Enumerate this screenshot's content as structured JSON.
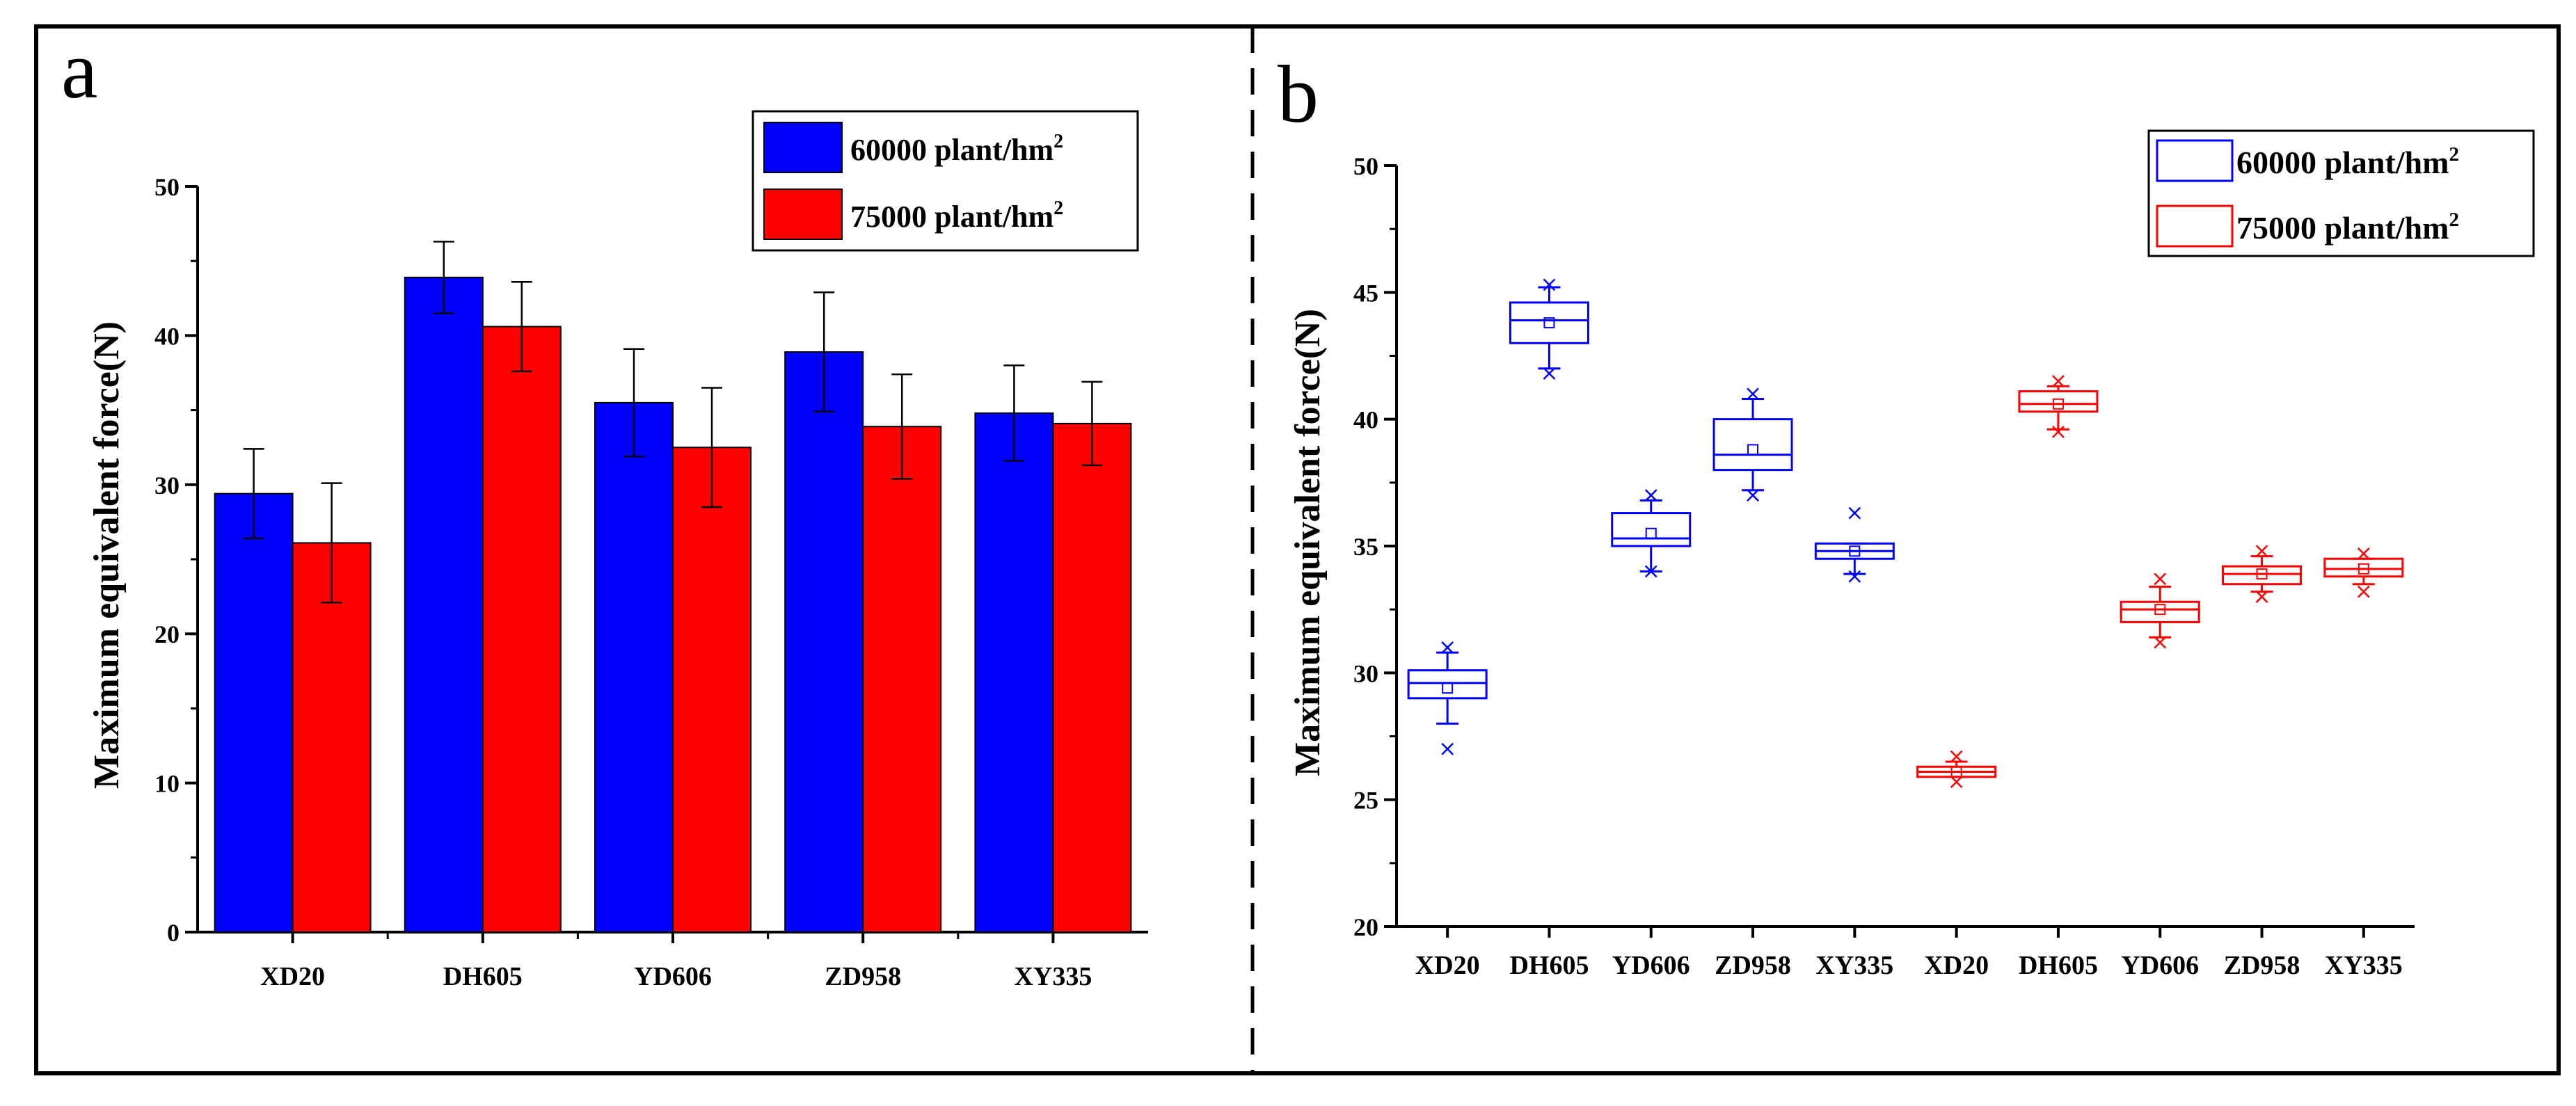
{
  "figure": {
    "border_color": "#000000",
    "divider_style": "dashed"
  },
  "chart_data": [
    {
      "panel_label": "a",
      "type": "bar",
      "title": "",
      "xlabel": "",
      "ylabel": "Maximum equivalent force(N)",
      "ylim": [
        0,
        50
      ],
      "yticks": [
        "0",
        "10",
        "20",
        "30",
        "40",
        "50"
      ],
      "grid": false,
      "categories": [
        "XD20",
        "DH605",
        "YD606",
        "ZD958",
        "XY335"
      ],
      "series": [
        {
          "name": "60000 plant/hm",
          "superscript": "2",
          "color": "#0000ff",
          "values": [
            29.4,
            43.9,
            35.5,
            38.9,
            34.8
          ],
          "errors": [
            3.0,
            2.4,
            3.6,
            4.0,
            3.2
          ]
        },
        {
          "name": "75000 plant/hm",
          "superscript": "2",
          "color": "#ff0000",
          "values": [
            26.1,
            40.6,
            32.5,
            33.9,
            34.1
          ],
          "errors": [
            4.0,
            3.0,
            4.0,
            3.5,
            2.8
          ]
        }
      ],
      "legend_position": "top-right"
    },
    {
      "panel_label": "b",
      "type": "box",
      "title": "",
      "xlabel": "",
      "ylabel": "Maximum equivalent force(N)",
      "ylim": [
        20,
        50
      ],
      "yticks": [
        "20",
        "25",
        "30",
        "35",
        "40",
        "45",
        "50"
      ],
      "grid": false,
      "categories": [
        "XD20",
        "DH605",
        "YD606",
        "ZD958",
        "XY335",
        "XD20",
        "DH605",
        "YD606",
        "ZD958",
        "XY335"
      ],
      "boxes": [
        {
          "series": 0,
          "whisker_low": 28.0,
          "q1": 29.0,
          "median": 29.6,
          "q3": 30.1,
          "whisker_high": 30.8,
          "mean": 29.4,
          "outliers": [
            27.0,
            31.0
          ]
        },
        {
          "series": 0,
          "whisker_low": 42.0,
          "q1": 43.0,
          "median": 43.9,
          "q3": 44.6,
          "whisker_high": 45.2,
          "mean": 43.8,
          "outliers": [
            41.8,
            45.3
          ]
        },
        {
          "series": 0,
          "whisker_low": 34.0,
          "q1": 35.0,
          "median": 35.3,
          "q3": 36.3,
          "whisker_high": 36.8,
          "mean": 35.5,
          "outliers": [
            34.0,
            37.0
          ]
        },
        {
          "series": 0,
          "whisker_low": 37.2,
          "q1": 38.0,
          "median": 38.6,
          "q3": 40.0,
          "whisker_high": 40.8,
          "mean": 38.8,
          "outliers": [
            37.0,
            41.0
          ]
        },
        {
          "series": 0,
          "whisker_low": 33.9,
          "q1": 34.5,
          "median": 34.8,
          "q3": 35.1,
          "whisker_high": 35.1,
          "mean": 34.8,
          "outliers": [
            33.8,
            36.3
          ]
        },
        {
          "series": 1,
          "whisker_low": 25.9,
          "q1": 25.9,
          "median": 26.1,
          "q3": 26.3,
          "whisker_high": 26.5,
          "mean": 26.1,
          "outliers": [
            25.7,
            26.7
          ]
        },
        {
          "series": 1,
          "whisker_low": 39.6,
          "q1": 40.3,
          "median": 40.6,
          "q3": 41.1,
          "whisker_high": 41.3,
          "mean": 40.6,
          "outliers": [
            39.5,
            41.5
          ]
        },
        {
          "series": 1,
          "whisker_low": 31.4,
          "q1": 32.0,
          "median": 32.5,
          "q3": 32.8,
          "whisker_high": 33.4,
          "mean": 32.5,
          "outliers": [
            31.2,
            33.7
          ]
        },
        {
          "series": 1,
          "whisker_low": 33.2,
          "q1": 33.5,
          "median": 33.9,
          "q3": 34.2,
          "whisker_high": 34.6,
          "mean": 33.9,
          "outliers": [
            33.0,
            34.8
          ]
        },
        {
          "series": 1,
          "whisker_low": 33.5,
          "q1": 33.8,
          "median": 34.1,
          "q3": 34.5,
          "whisker_high": 34.5,
          "mean": 34.1,
          "outliers": [
            33.2,
            34.7
          ]
        }
      ],
      "series": [
        {
          "name": "60000 plant/hm",
          "superscript": "2",
          "color": "#0000ff"
        },
        {
          "name": "75000 plant/hm",
          "superscript": "2",
          "color": "#ff0000"
        }
      ],
      "legend_position": "top-right"
    }
  ]
}
